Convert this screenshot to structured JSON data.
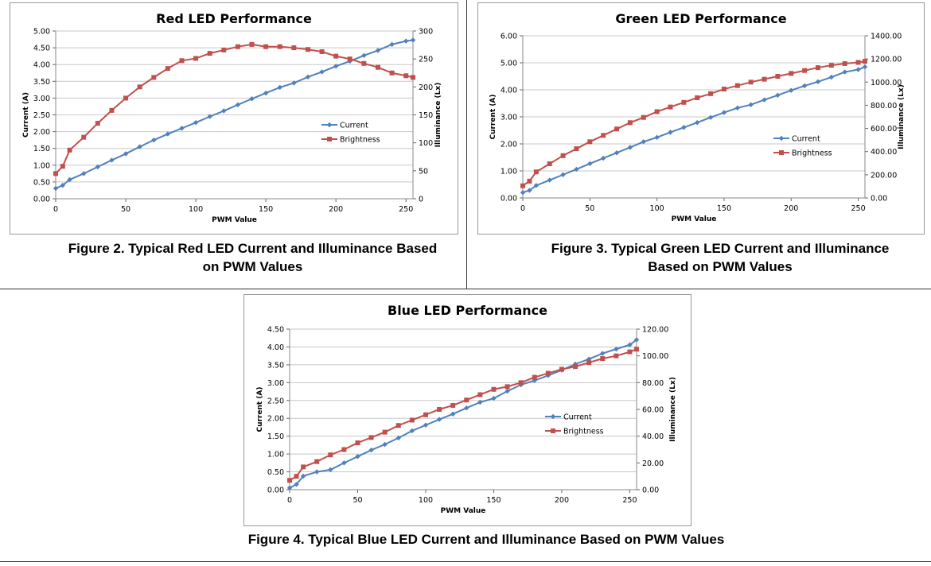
{
  "figures": [
    {
      "caption_line1": "Figure 2. Typical Red LED Current and Illuminance Based",
      "caption_line2": "on PWM Values"
    },
    {
      "caption_line1": "Figure 3. Typical Green LED Current and Illuminance",
      "caption_line2": "Based on PWM Values"
    },
    {
      "caption_line1": "Figure 4. Typical Blue LED Current and Illuminance Based on PWM Values",
      "caption_line2": ""
    }
  ],
  "chart_data": [
    {
      "type": "line",
      "title": "Red LED Performance",
      "xlabel": "PWM Value",
      "ylabel": "Current (A)",
      "y2label": "Illuminance (Lx)",
      "xlim": [
        0,
        255
      ],
      "ylim": [
        0,
        5
      ],
      "y2lim": [
        0,
        300
      ],
      "xticks": [
        0,
        50,
        100,
        150,
        200,
        250
      ],
      "yticks": [
        "0.00",
        "0.50",
        "1.00",
        "1.50",
        "2.00",
        "2.50",
        "3.00",
        "3.50",
        "4.00",
        "4.50",
        "5.00"
      ],
      "y2ticks": [
        "0",
        "50",
        "100",
        "150",
        "200",
        "250",
        "300"
      ],
      "grid": "horizontal",
      "legend": "center-right",
      "x": [
        0,
        5,
        10,
        20,
        30,
        40,
        50,
        60,
        70,
        80,
        90,
        100,
        110,
        120,
        130,
        140,
        150,
        160,
        170,
        180,
        190,
        200,
        210,
        220,
        230,
        240,
        250,
        255
      ],
      "series": [
        {
          "name": "Current",
          "axis": "left",
          "color": "#4f81bd",
          "marker": "diamond",
          "values": [
            0.31,
            0.4,
            0.57,
            0.75,
            0.95,
            1.15,
            1.34,
            1.55,
            1.75,
            1.93,
            2.1,
            2.27,
            2.45,
            2.62,
            2.8,
            2.98,
            3.15,
            3.32,
            3.45,
            3.63,
            3.78,
            3.95,
            4.1,
            4.27,
            4.42,
            4.6,
            4.7,
            4.73
          ]
        },
        {
          "name": "Brightness",
          "axis": "right",
          "color": "#c0504d",
          "marker": "square",
          "values": [
            45,
            58,
            87,
            110,
            135,
            158,
            180,
            200,
            217,
            233,
            247,
            251,
            260,
            266,
            272,
            276,
            272,
            272,
            270,
            267,
            263,
            255,
            250,
            242,
            235,
            225,
            220,
            217
          ]
        }
      ]
    },
    {
      "type": "line",
      "title": "Green LED Performance",
      "xlabel": "PWM Value",
      "ylabel": "Current (A)",
      "y2label": "Illuminance (Lx)",
      "xlim": [
        0,
        255
      ],
      "ylim": [
        0,
        6
      ],
      "y2lim": [
        0,
        1400
      ],
      "xticks": [
        0,
        50,
        100,
        150,
        200,
        250
      ],
      "yticks": [
        "0.00",
        "1.00",
        "2.00",
        "3.00",
        "4.00",
        "5.00",
        "6.00"
      ],
      "y2ticks": [
        "0.00",
        "200.00",
        "400.00",
        "600.00",
        "800.00",
        "1000.00",
        "1200.00",
        "1400.00"
      ],
      "grid": "horizontal",
      "legend": "center-right",
      "x": [
        0,
        5,
        10,
        20,
        30,
        40,
        50,
        60,
        70,
        80,
        90,
        100,
        110,
        120,
        130,
        140,
        150,
        160,
        170,
        180,
        190,
        200,
        210,
        220,
        230,
        240,
        250,
        255
      ],
      "series": [
        {
          "name": "Current",
          "axis": "left",
          "color": "#4f81bd",
          "marker": "diamond",
          "values": [
            0.2,
            0.28,
            0.46,
            0.66,
            0.86,
            1.06,
            1.27,
            1.47,
            1.67,
            1.87,
            2.08,
            2.24,
            2.43,
            2.61,
            2.79,
            2.98,
            3.16,
            3.33,
            3.45,
            3.63,
            3.8,
            3.98,
            4.15,
            4.3,
            4.47,
            4.66,
            4.75,
            4.85
          ]
        },
        {
          "name": "Brightness",
          "axis": "right",
          "color": "#c0504d",
          "marker": "square",
          "values": [
            105,
            145,
            225,
            295,
            365,
            425,
            485,
            540,
            595,
            650,
            695,
            745,
            785,
            825,
            865,
            900,
            940,
            970,
            1000,
            1025,
            1050,
            1075,
            1100,
            1125,
            1145,
            1160,
            1170,
            1180
          ]
        }
      ]
    },
    {
      "type": "line",
      "title": "Blue LED Performance",
      "xlabel": "PWM Value",
      "ylabel": "Current (A)",
      "y2label": "Illuminance (Lx)",
      "xlim": [
        0,
        255
      ],
      "ylim": [
        0,
        4.5
      ],
      "y2lim": [
        0,
        120
      ],
      "xticks": [
        0,
        50,
        100,
        150,
        200,
        250
      ],
      "yticks": [
        "0.00",
        "0.50",
        "1.00",
        "1.50",
        "2.00",
        "2.50",
        "3.00",
        "3.50",
        "4.00",
        "4.50"
      ],
      "y2ticks": [
        "0.00",
        "20.00",
        "40.00",
        "60.00",
        "80.00",
        "100.00",
        "120.00"
      ],
      "grid": "horizontal",
      "legend": "center-right",
      "x": [
        0,
        5,
        10,
        20,
        30,
        40,
        50,
        60,
        70,
        80,
        90,
        100,
        110,
        120,
        130,
        140,
        150,
        160,
        170,
        180,
        190,
        200,
        210,
        220,
        230,
        240,
        250,
        255
      ],
      "series": [
        {
          "name": "Current",
          "axis": "left",
          "color": "#4f81bd",
          "marker": "diamond",
          "values": [
            0.05,
            0.15,
            0.38,
            0.5,
            0.56,
            0.75,
            0.93,
            1.11,
            1.27,
            1.45,
            1.65,
            1.81,
            1.97,
            2.12,
            2.29,
            2.45,
            2.56,
            2.76,
            2.94,
            3.06,
            3.2,
            3.35,
            3.52,
            3.66,
            3.82,
            3.94,
            4.06,
            4.2
          ]
        },
        {
          "name": "Brightness",
          "axis": "right",
          "color": "#c0504d",
          "marker": "square",
          "values": [
            7,
            10,
            17,
            21,
            26,
            30,
            35,
            39,
            43,
            48,
            52,
            56,
            60,
            63,
            67,
            71,
            75,
            77,
            80,
            84,
            87,
            90,
            92,
            95,
            98,
            100,
            103,
            105
          ]
        }
      ]
    }
  ]
}
